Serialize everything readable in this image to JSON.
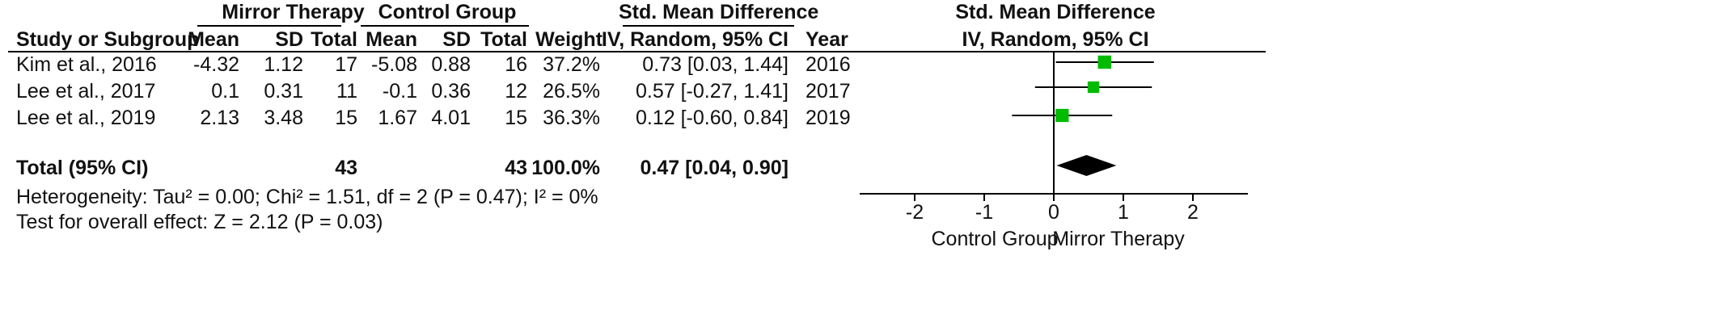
{
  "headers": {
    "group1": "Mirror Therapy",
    "group2": "Control Group",
    "effect_group": "Std. Mean Difference",
    "study": "Study or Subgroup",
    "mean1": "Mean",
    "sd1": "SD",
    "total1": "Total",
    "mean2": "Mean",
    "sd2": "SD",
    "total2": "Total",
    "weight": "Weight",
    "method": "IV, Random, 95% CI",
    "year": "Year",
    "plot_title": "Std. Mean Difference",
    "plot_method": "IV, Random, 95% CI"
  },
  "studies": [
    {
      "name": "Kim et al., 2016",
      "mean1": "-4.32",
      "sd1": "1.12",
      "total1": "17",
      "mean2": "-5.08",
      "sd2": "0.88",
      "total2": "16",
      "weight": "37.2%",
      "ci_text": "0.73 [0.03, 1.44]",
      "year": "2016"
    },
    {
      "name": "Lee et al., 2017",
      "mean1": "0.1",
      "sd1": "0.31",
      "total1": "11",
      "mean2": "-0.1",
      "sd2": "0.36",
      "total2": "12",
      "weight": "26.5%",
      "ci_text": "0.57 [-0.27, 1.41]",
      "year": "2017"
    },
    {
      "name": "Lee et al., 2019",
      "mean1": "2.13",
      "sd1": "3.48",
      "total1": "15",
      "mean2": "1.67",
      "sd2": "4.01",
      "total2": "15",
      "weight": "36.3%",
      "ci_text": "0.12 [-0.60, 0.84]",
      "year": "2019"
    }
  ],
  "total": {
    "label": "Total (95% CI)",
    "total1": "43",
    "total2": "43",
    "weight": "100.0%",
    "ci_text": "0.47 [0.04, 0.90]"
  },
  "heterogeneity": "Heterogeneity: Tau² = 0.00; Chi² = 1.51, df = 2 (P = 0.47); I² = 0%",
  "overall_effect": "Test for overall effect: Z = 2.12 (P = 0.03)",
  "chart_data": {
    "type": "forest",
    "xlim": [
      -2,
      2
    ],
    "ticks": [
      -2,
      -1,
      0,
      1,
      2
    ],
    "xlabel_left": "Control Group",
    "xlabel_right": "Mirror Therapy",
    "points": [
      {
        "study": "Kim et al., 2016",
        "estimate": 0.73,
        "lower": 0.03,
        "upper": 1.44,
        "weight": 37.2
      },
      {
        "study": "Lee et al., 2017",
        "estimate": 0.57,
        "lower": -0.27,
        "upper": 1.41,
        "weight": 26.5
      },
      {
        "study": "Lee et al., 2019",
        "estimate": 0.12,
        "lower": -0.6,
        "upper": 0.84,
        "weight": 36.3
      }
    ],
    "pooled": {
      "estimate": 0.47,
      "lower": 0.04,
      "upper": 0.9
    },
    "marker_color": "#00bb00",
    "diamond_color": "#000000"
  }
}
